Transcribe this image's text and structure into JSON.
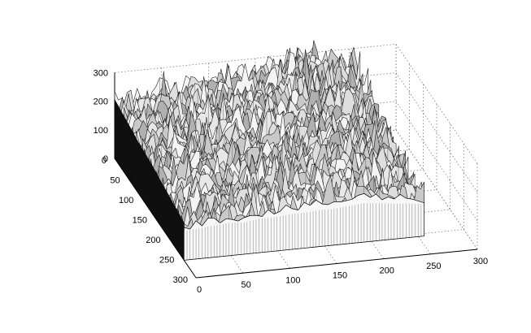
{
  "chart_data": {
    "type": "surface",
    "title": "",
    "xlabel": "",
    "ylabel": "",
    "zlabel": "",
    "grid": true,
    "legend": false,
    "colormap": "gray",
    "xlim": [
      0,
      300
    ],
    "ylim": [
      0,
      300
    ],
    "zlim": [
      0,
      300
    ],
    "x_ticks": [
      "0",
      "50",
      "100",
      "150",
      "200",
      "250",
      "300"
    ],
    "y_ticks": [
      "0",
      "50",
      "100",
      "150",
      "200",
      "250",
      "300"
    ],
    "z_ticks": [
      "0",
      "100",
      "200",
      "300"
    ],
    "data_extent": {
      "x": [
        0,
        256
      ],
      "y": [
        0,
        256
      ]
    },
    "surface_height_rows": [
      {
        "y": 0,
        "heights": [
          195,
          205,
          215,
          225,
          215,
          230,
          235,
          240,
          250,
          245,
          255,
          270,
          285,
          290,
          270,
          250,
          235
        ]
      },
      {
        "y": 32,
        "heights": [
          185,
          195,
          205,
          210,
          205,
          215,
          220,
          225,
          230,
          240,
          250,
          265,
          280,
          275,
          255,
          235,
          225
        ]
      },
      {
        "y": 64,
        "heights": [
          175,
          185,
          195,
          200,
          190,
          200,
          205,
          215,
          220,
          230,
          235,
          250,
          270,
          265,
          240,
          225,
          210
        ]
      },
      {
        "y": 96,
        "heights": [
          165,
          175,
          180,
          190,
          180,
          190,
          195,
          200,
          210,
          215,
          225,
          240,
          255,
          245,
          230,
          210,
          195
        ]
      },
      {
        "y": 128,
        "heights": [
          160,
          165,
          170,
          180,
          175,
          185,
          190,
          190,
          200,
          205,
          210,
          225,
          235,
          225,
          210,
          195,
          180
        ]
      },
      {
        "y": 160,
        "heights": [
          150,
          155,
          165,
          170,
          165,
          175,
          180,
          180,
          185,
          190,
          195,
          205,
          215,
          210,
          195,
          180,
          165
        ]
      },
      {
        "y": 192,
        "heights": [
          140,
          145,
          150,
          160,
          150,
          160,
          165,
          170,
          170,
          175,
          180,
          185,
          195,
          190,
          180,
          165,
          155
        ]
      },
      {
        "y": 224,
        "heights": [
          130,
          135,
          140,
          145,
          140,
          150,
          150,
          155,
          155,
          160,
          165,
          170,
          175,
          170,
          160,
          150,
          140
        ]
      },
      {
        "y": 256,
        "heights": [
          120,
          125,
          130,
          135,
          130,
          140,
          140,
          145,
          145,
          150,
          150,
          155,
          160,
          155,
          145,
          140,
          130
        ]
      }
    ]
  }
}
